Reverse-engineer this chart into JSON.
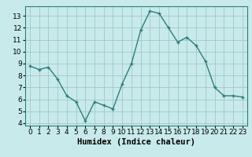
{
  "x": [
    0,
    1,
    2,
    3,
    4,
    5,
    6,
    7,
    8,
    9,
    10,
    11,
    12,
    13,
    14,
    15,
    16,
    17,
    18,
    19,
    20,
    21,
    22,
    23
  ],
  "y": [
    8.8,
    8.5,
    8.7,
    7.7,
    6.3,
    5.8,
    4.2,
    5.8,
    5.5,
    5.2,
    7.3,
    9.0,
    11.8,
    13.4,
    13.2,
    12.0,
    10.8,
    11.2,
    10.5,
    9.2,
    7.0,
    6.3,
    6.3,
    6.2
  ],
  "line_color": "#2d7d7d",
  "marker": "+",
  "bg_color": "#c8eaea",
  "grid_color": "#a0c8c8",
  "xlabel": "Humidex (Indice chaleur)",
  "xlim": [
    -0.5,
    23.5
  ],
  "ylim": [
    3.8,
    13.8
  ],
  "yticks": [
    4,
    5,
    6,
    7,
    8,
    9,
    10,
    11,
    12,
    13
  ],
  "xticks": [
    0,
    1,
    2,
    3,
    4,
    5,
    6,
    7,
    8,
    9,
    10,
    11,
    12,
    13,
    14,
    15,
    16,
    17,
    18,
    19,
    20,
    21,
    22,
    23
  ],
  "font_size": 6.5,
  "xlabel_font_size": 7.5,
  "marker_size": 3,
  "line_width": 1.0,
  "markeredgewidth": 1.0
}
